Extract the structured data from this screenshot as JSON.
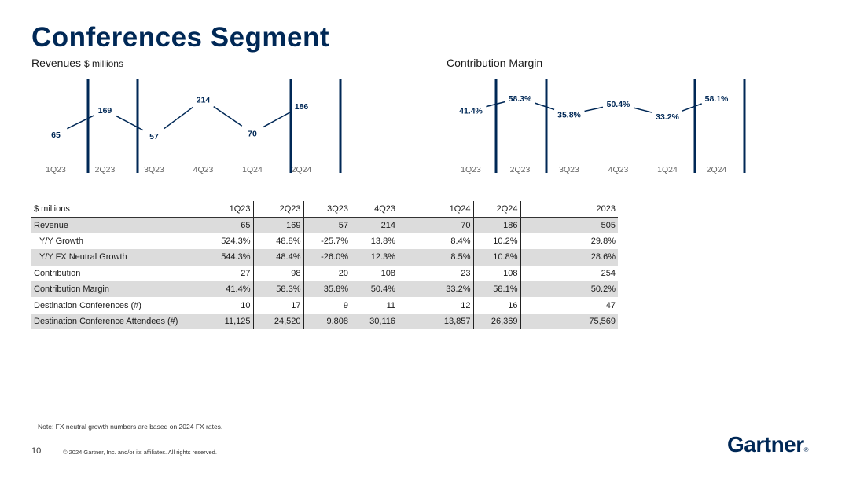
{
  "page_title": "Conferences Segment",
  "chart_data": [
    {
      "type": "line",
      "title": "Revenues",
      "title_unit": "$ millions",
      "categories": [
        "1Q23",
        "2Q23",
        "3Q23",
        "4Q23",
        "1Q24",
        "2Q24"
      ],
      "values": [
        65,
        169,
        57,
        214,
        70,
        186
      ],
      "data_labels": [
        "65",
        "169",
        "57",
        "214",
        "70",
        "186"
      ],
      "ylim": [
        0,
        250
      ]
    },
    {
      "type": "line",
      "title": "Contribution Margin",
      "categories": [
        "1Q23",
        "2Q23",
        "3Q23",
        "4Q23",
        "1Q24",
        "2Q24"
      ],
      "values": [
        41.4,
        58.3,
        35.8,
        50.4,
        33.2,
        58.1
      ],
      "data_labels": [
        "41.4%",
        "58.3%",
        "35.8%",
        "50.4%",
        "33.2%",
        "58.1%"
      ],
      "ylim": [
        0,
        100
      ]
    }
  ],
  "table": {
    "headers": [
      "$ millions",
      "1Q23",
      "2Q23",
      "3Q23",
      "4Q23",
      "1Q24",
      "2Q24",
      "2023"
    ],
    "rows": [
      [
        "Revenue",
        "65",
        "169",
        "57",
        "214",
        "70",
        "186",
        "505"
      ],
      [
        "Y/Y Growth",
        "524.3%",
        "48.8%",
        "-25.7%",
        "13.8%",
        "8.4%",
        "10.2%",
        "29.8%"
      ],
      [
        "Y/Y FX Neutral Growth",
        "544.3%",
        "48.4%",
        "-26.0%",
        "12.3%",
        "8.5%",
        "10.8%",
        "28.6%"
      ],
      [
        "Contribution",
        "27",
        "98",
        "20",
        "108",
        "23",
        "108",
        "254"
      ],
      [
        "Contribution Margin",
        "41.4%",
        "58.3%",
        "35.8%",
        "50.4%",
        "33.2%",
        "58.1%",
        "50.2%"
      ],
      [
        "Destination Conferences (#)",
        "10",
        "17",
        "9",
        "11",
        "12",
        "16",
        "47"
      ],
      [
        "Destination Conference Attendees (#)",
        "11,125",
        "24,520",
        "9,808",
        "30,116",
        "13,857",
        "26,369",
        "75,569"
      ]
    ]
  },
  "note": "Note: FX neutral growth numbers are based on 2024 FX rates.",
  "page_number": "10",
  "copyright": "© 2024 Gartner, Inc. and/or its affiliates. All rights reserved.",
  "logo_text": "Gartner",
  "logo_mark": "®",
  "colors": {
    "navy": "#002856",
    "grey": "#666666",
    "shade": "#dcdcdc"
  }
}
